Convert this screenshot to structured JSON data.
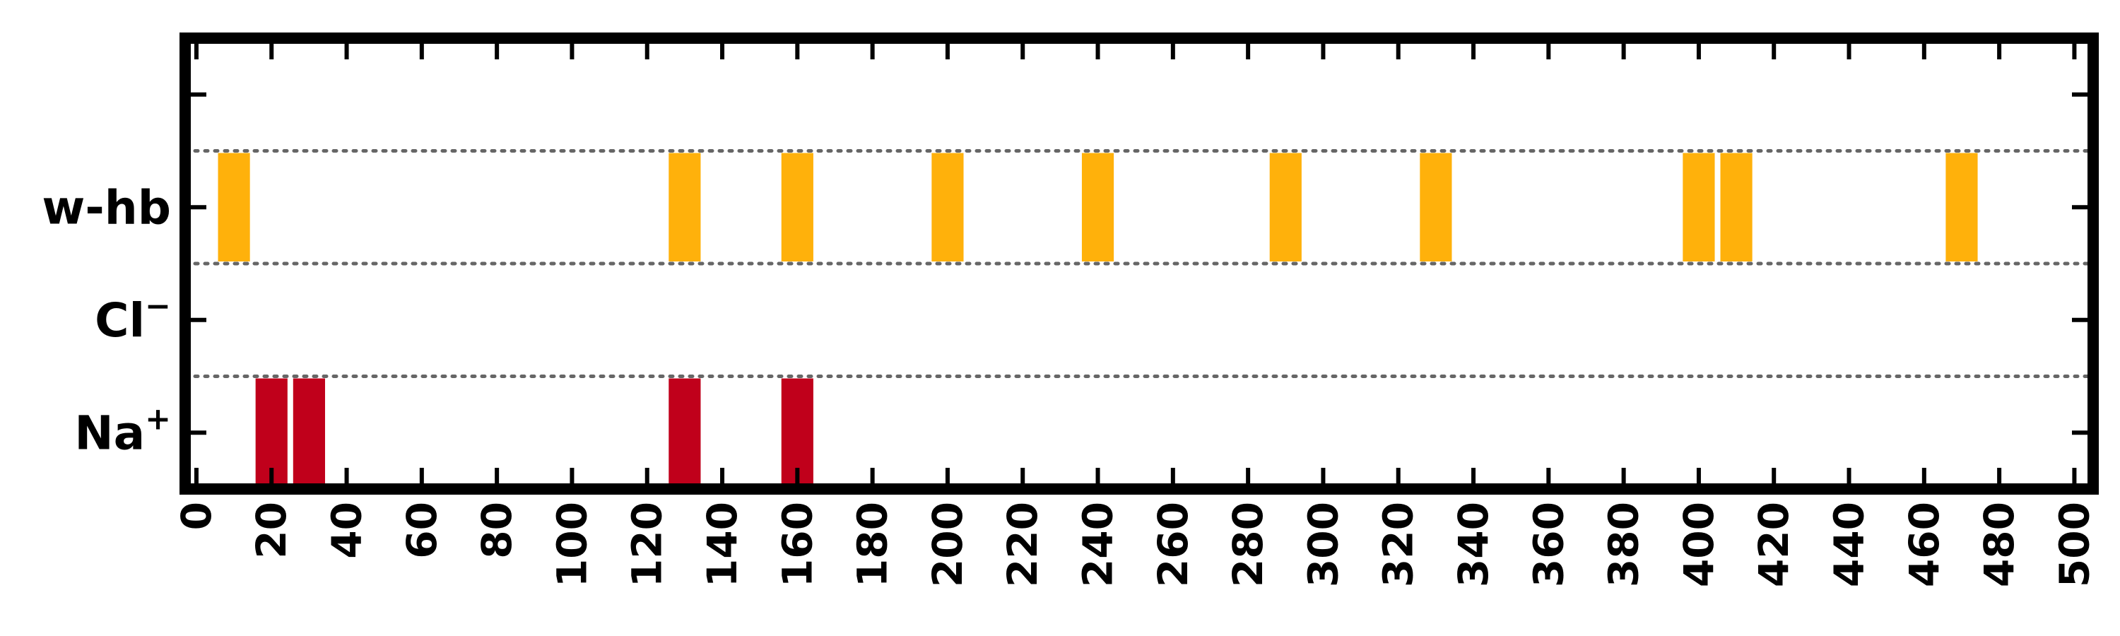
{
  "chart_data": {
    "type": "bar",
    "title": "",
    "xlabel": "",
    "ylabel": "",
    "xlim": [
      -3,
      505
    ],
    "x_ticks": [
      0,
      20,
      40,
      60,
      80,
      100,
      120,
      140,
      160,
      180,
      200,
      220,
      240,
      260,
      280,
      300,
      320,
      340,
      360,
      380,
      400,
      420,
      440,
      460,
      480,
      500
    ],
    "categories": [
      "Na⁺",
      "Cl⁻",
      "w-hb"
    ],
    "category_labels": [
      {
        "base": "Na",
        "sup": "+"
      },
      {
        "base": "Cl",
        "sup": "−"
      },
      {
        "base": "w-hb",
        "sup": ""
      }
    ],
    "bar_width": 8.5,
    "grid": "dotted lines between categories",
    "legend": "none",
    "series": [
      {
        "category": "w-hb",
        "color": "#FFB10B",
        "x": [
          10,
          130,
          160,
          200,
          240,
          290,
          330,
          400,
          410,
          470
        ]
      },
      {
        "category": "Cl⁻",
        "color": "#C0001B",
        "x": []
      },
      {
        "category": "Na⁺",
        "color": "#C0001B",
        "x": [
          20,
          30,
          130,
          160
        ]
      }
    ]
  }
}
